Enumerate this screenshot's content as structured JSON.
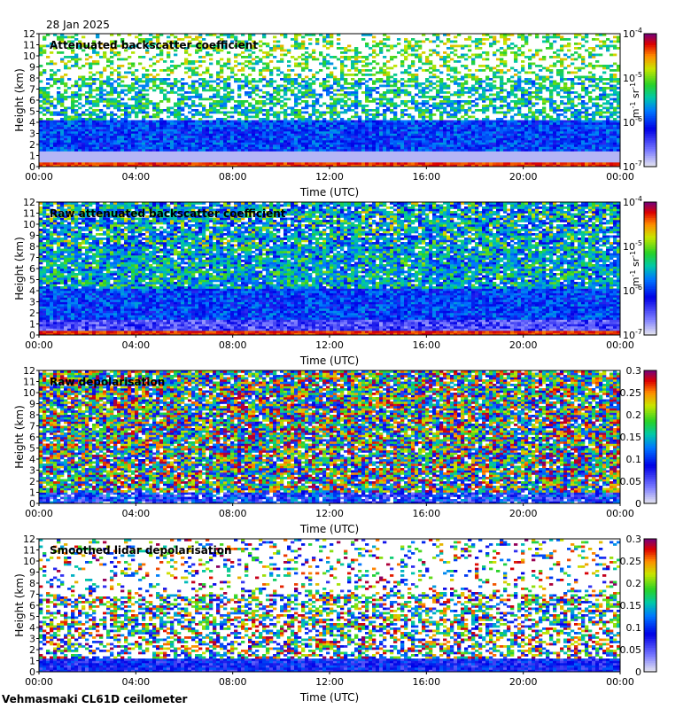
{
  "date": "28 Jan 2025",
  "footer": "Vehmasmaki CL61D ceilometer",
  "colors": {
    "background_noise": "#dcdcdc",
    "frame": "#000000"
  },
  "chart_data": [
    {
      "type": "heatmap",
      "title": "Attenuated backscatter coefficient",
      "xlabel": "Time (UTC)",
      "ylabel": "Height (km)",
      "x_ticks": [
        "00:00",
        "04:00",
        "08:00",
        "12:00",
        "16:00",
        "20:00",
        "00:00"
      ],
      "y_ticks": [
        "0",
        "1",
        "2",
        "3",
        "4",
        "5",
        "6",
        "7",
        "8",
        "9",
        "10",
        "11",
        "12"
      ],
      "ylim": [
        0,
        12
      ],
      "colorbar": {
        "scale": "log",
        "range": [
          1e-07,
          0.0001
        ],
        "tick_bases": [
          "10",
          "10",
          "10",
          "10"
        ],
        "tick_exponents": [
          "-7",
          "-6",
          "-5",
          "-4"
        ],
        "unit": "m-1 sr-1",
        "unit_parts": [
          "m",
          "-1",
          " sr",
          "-1"
        ]
      }
    },
    {
      "type": "heatmap",
      "title": "Raw attenuated backscatter coefficient",
      "xlabel": "Time (UTC)",
      "ylabel": "Height (km)",
      "x_ticks": [
        "00:00",
        "04:00",
        "08:00",
        "12:00",
        "16:00",
        "20:00",
        "00:00"
      ],
      "y_ticks": [
        "0",
        "1",
        "2",
        "3",
        "4",
        "5",
        "6",
        "7",
        "8",
        "9",
        "10",
        "11",
        "12"
      ],
      "ylim": [
        0,
        12
      ],
      "colorbar": {
        "scale": "log",
        "range": [
          1e-07,
          0.0001
        ],
        "tick_bases": [
          "10",
          "10",
          "10",
          "10"
        ],
        "tick_exponents": [
          "-7",
          "-6",
          "-5",
          "-4"
        ],
        "unit": "m-1 sr-1",
        "unit_parts": [
          "m",
          "-1",
          " sr",
          "-1"
        ]
      }
    },
    {
      "type": "heatmap",
      "title": "Raw depolarisation",
      "xlabel": "Time (UTC)",
      "ylabel": "Height (km)",
      "x_ticks": [
        "00:00",
        "04:00",
        "08:00",
        "12:00",
        "16:00",
        "20:00",
        "00:00"
      ],
      "y_ticks": [
        "0",
        "1",
        "2",
        "3",
        "4",
        "5",
        "6",
        "7",
        "8",
        "9",
        "10",
        "11",
        "12"
      ],
      "ylim": [
        0,
        12
      ],
      "colorbar": {
        "scale": "linear",
        "range": [
          0,
          0.3
        ],
        "ticks": [
          "0",
          "0.05",
          "0.1",
          "0.15",
          "0.2",
          "0.25",
          "0.3"
        ]
      }
    },
    {
      "type": "heatmap",
      "title": "Smoothed lidar depolarisation",
      "xlabel": "Time (UTC)",
      "ylabel": "Height (km)",
      "x_ticks": [
        "00:00",
        "04:00",
        "08:00",
        "12:00",
        "16:00",
        "20:00",
        "00:00"
      ],
      "y_ticks": [
        "0",
        "1",
        "2",
        "3",
        "4",
        "5",
        "6",
        "7",
        "8",
        "9",
        "10",
        "11",
        "12"
      ],
      "ylim": [
        0,
        12
      ],
      "colorbar": {
        "scale": "linear",
        "range": [
          0,
          0.3
        ],
        "ticks": [
          "0",
          "0.05",
          "0.1",
          "0.15",
          "0.2",
          "0.25",
          "0.3"
        ]
      }
    }
  ]
}
